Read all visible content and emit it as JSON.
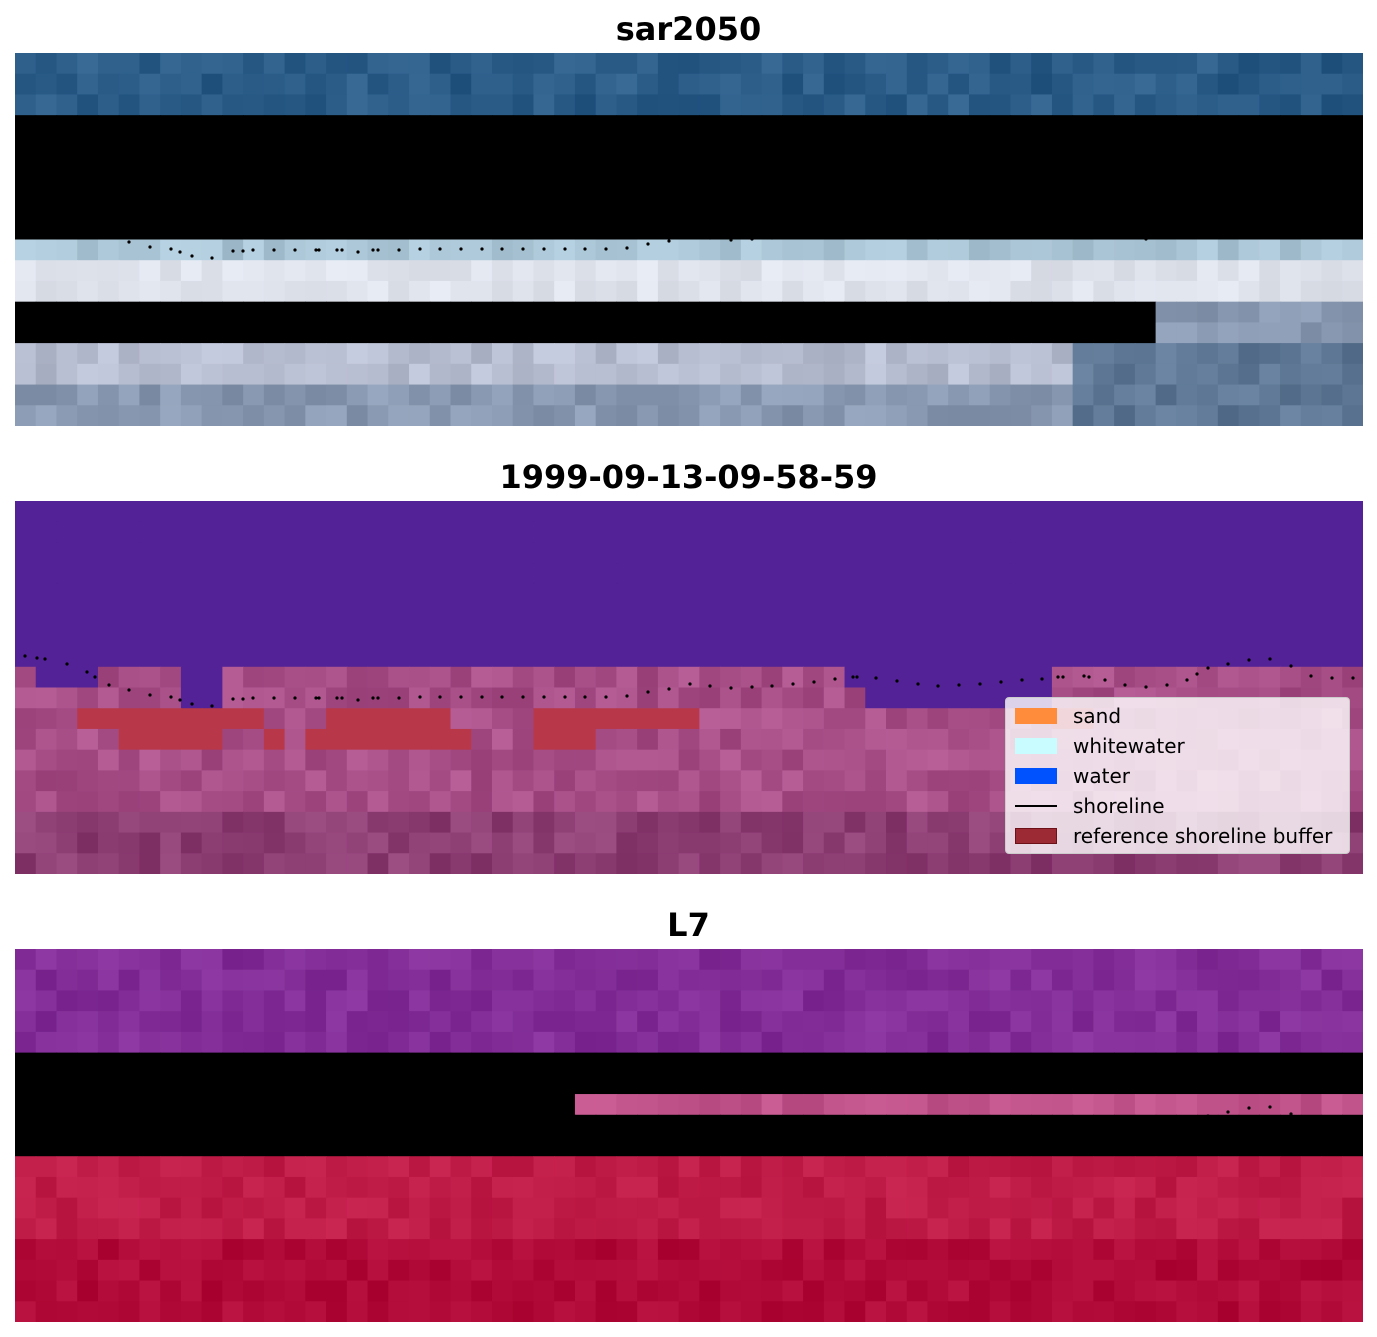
{
  "chart_data": [
    {
      "type": "heatmap",
      "title": "sar2050",
      "description_kind": "RGB satellite image",
      "grid": false,
      "shoreline_overlay": true,
      "palette": {
        "deep": "#2b5c88",
        "shallow": "#4e86a8",
        "surf": "#a9c4d4",
        "foam": "#dfe3ec",
        "beach": "#b7bdd0",
        "inland": "#8898b0",
        "dark": "#5e7895"
      }
    },
    {
      "type": "heatmap",
      "title": "1999-09-13-09-58-59",
      "description_kind": "classified image",
      "grid": false,
      "shoreline_overlay": true,
      "palette": {
        "water_class": "#532296",
        "land": "#a84f88",
        "land_dark": "#8c3d72",
        "buffer": "#b8384a"
      },
      "legend": {
        "placement": "center-right",
        "items": [
          {
            "label": "sand",
            "color": "#ff8c3a",
            "kind": "patch"
          },
          {
            "label": "whitewater",
            "color": "#c8fcff",
            "kind": "patch"
          },
          {
            "label": "water",
            "color": "#0052ff",
            "kind": "patch"
          },
          {
            "label": "shoreline",
            "color": "#000000",
            "kind": "line"
          },
          {
            "label": "reference shoreline buffer",
            "color": "#9b2a34",
            "edge": "#6e1018",
            "kind": "patch"
          }
        ]
      }
    },
    {
      "type": "heatmap",
      "title": "L7",
      "description_kind": "satellite band composite",
      "grid": false,
      "shoreline_overlay": true,
      "palette": {
        "upper": "#832e98",
        "upper_dark": "#6a1c9a",
        "band": "#c0528a",
        "lower": "#c01c48",
        "lower_dark": "#b10a38"
      }
    }
  ]
}
